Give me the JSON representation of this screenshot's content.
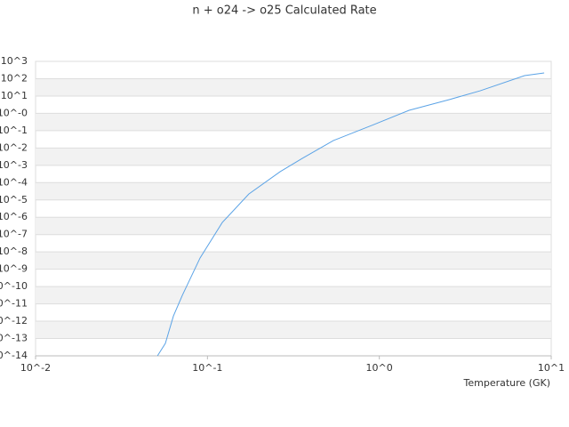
{
  "chart_data": {
    "type": "line",
    "title": "n + o24 -> o25 Calculated Rate",
    "x_label": "Temperature (GK)",
    "x": [
      0.0512,
      0.0569,
      0.0634,
      0.0714,
      0.0906,
      0.122,
      0.174,
      0.265,
      0.356,
      0.541,
      0.925,
      1.49,
      2.55,
      3.86,
      7.0,
      9.1
    ],
    "series": [
      {
        "color": "#5ba3e6",
        "values": [
          1e-14,
          5.2e-14,
          2e-12,
          3.1e-11,
          4.5e-09,
          5e-07,
          2.2e-05,
          0.00043,
          0.0025,
          0.027,
          0.22,
          1.5,
          6.2,
          20,
          150,
          215
        ]
      }
    ],
    "xlog": true,
    "ylog": true,
    "grid": true,
    "xlim": [
      0.01,
      10
    ],
    "ylim": [
      1e-14,
      1000
    ],
    "xticks": [
      {
        "value": 0.01,
        "label": "10^-2"
      },
      {
        "value": 0.1,
        "label": "10^-1"
      },
      {
        "value": 1,
        "label": "10^0"
      },
      {
        "value": 10,
        "label": "10^1"
      }
    ],
    "yticks": [
      {
        "value": 1000,
        "label": "10^3"
      },
      {
        "value": 100,
        "label": "10^2"
      },
      {
        "value": 10,
        "label": "10^1"
      },
      {
        "value": 1,
        "label": "10^-0"
      },
      {
        "value": 0.1,
        "label": "10^-1"
      },
      {
        "value": 0.01,
        "label": "10^-2"
      },
      {
        "value": 0.001,
        "label": "10^-3"
      },
      {
        "value": 0.0001,
        "label": "10^-4"
      },
      {
        "value": 1e-05,
        "label": "10^-5"
      },
      {
        "value": 1e-06,
        "label": "10^-6"
      },
      {
        "value": 1e-07,
        "label": "10^-7"
      },
      {
        "value": 1e-08,
        "label": "10^-8"
      },
      {
        "value": 1e-09,
        "label": "10^-9"
      },
      {
        "value": 1e-10,
        "label": "10^-10"
      },
      {
        "value": 1e-11,
        "label": "10^-11"
      },
      {
        "value": 1e-12,
        "label": "10^-12"
      },
      {
        "value": 1e-13,
        "label": "10^-13"
      },
      {
        "value": 1e-14,
        "label": "10^-14"
      }
    ]
  }
}
